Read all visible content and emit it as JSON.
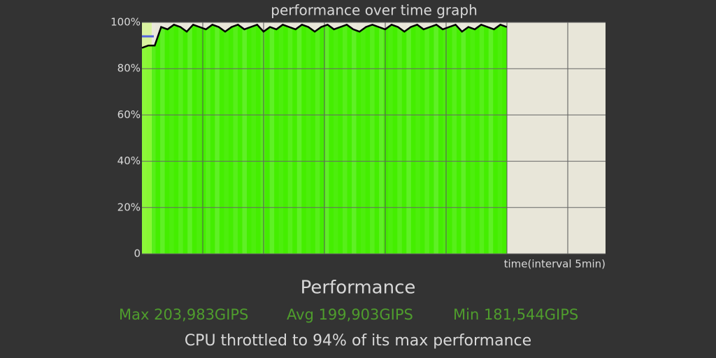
{
  "chart_data": {
    "type": "area",
    "title": "performance over time graph",
    "x_label": "time(interval 5min)",
    "values": [
      89,
      90,
      90,
      98,
      97,
      99,
      98,
      96,
      99,
      98,
      97,
      99,
      98,
      96,
      98,
      99,
      97,
      98,
      99,
      96,
      98,
      97,
      99,
      98,
      97,
      99,
      98,
      96,
      98,
      99,
      97,
      98,
      99,
      97,
      96,
      98,
      99,
      98,
      97,
      99,
      98,
      96,
      98,
      99,
      97,
      98,
      99,
      97,
      98,
      99,
      96,
      98,
      97,
      99,
      98,
      97,
      99,
      98
    ],
    "color": "#44ee00",
    "line_color": "#000000",
    "ylim": [
      0,
      100
    ],
    "yticks": [
      0,
      {
        "value": 20,
        "label": "20%"
      },
      {
        "value": 40,
        "label": "40%"
      },
      {
        "value": 60,
        "label": "60%"
      },
      {
        "value": 80,
        "label": "80%"
      },
      {
        "value": 100,
        "label": "100%"
      }
    ],
    "grid": true
  },
  "stats": {
    "heading": "Performance",
    "max": "Max 203,983GIPS",
    "avg": "Avg 199,903GIPS",
    "min": "Min 181,544GIPS",
    "summary": "CPU throttled to 94% of its max performance"
  }
}
